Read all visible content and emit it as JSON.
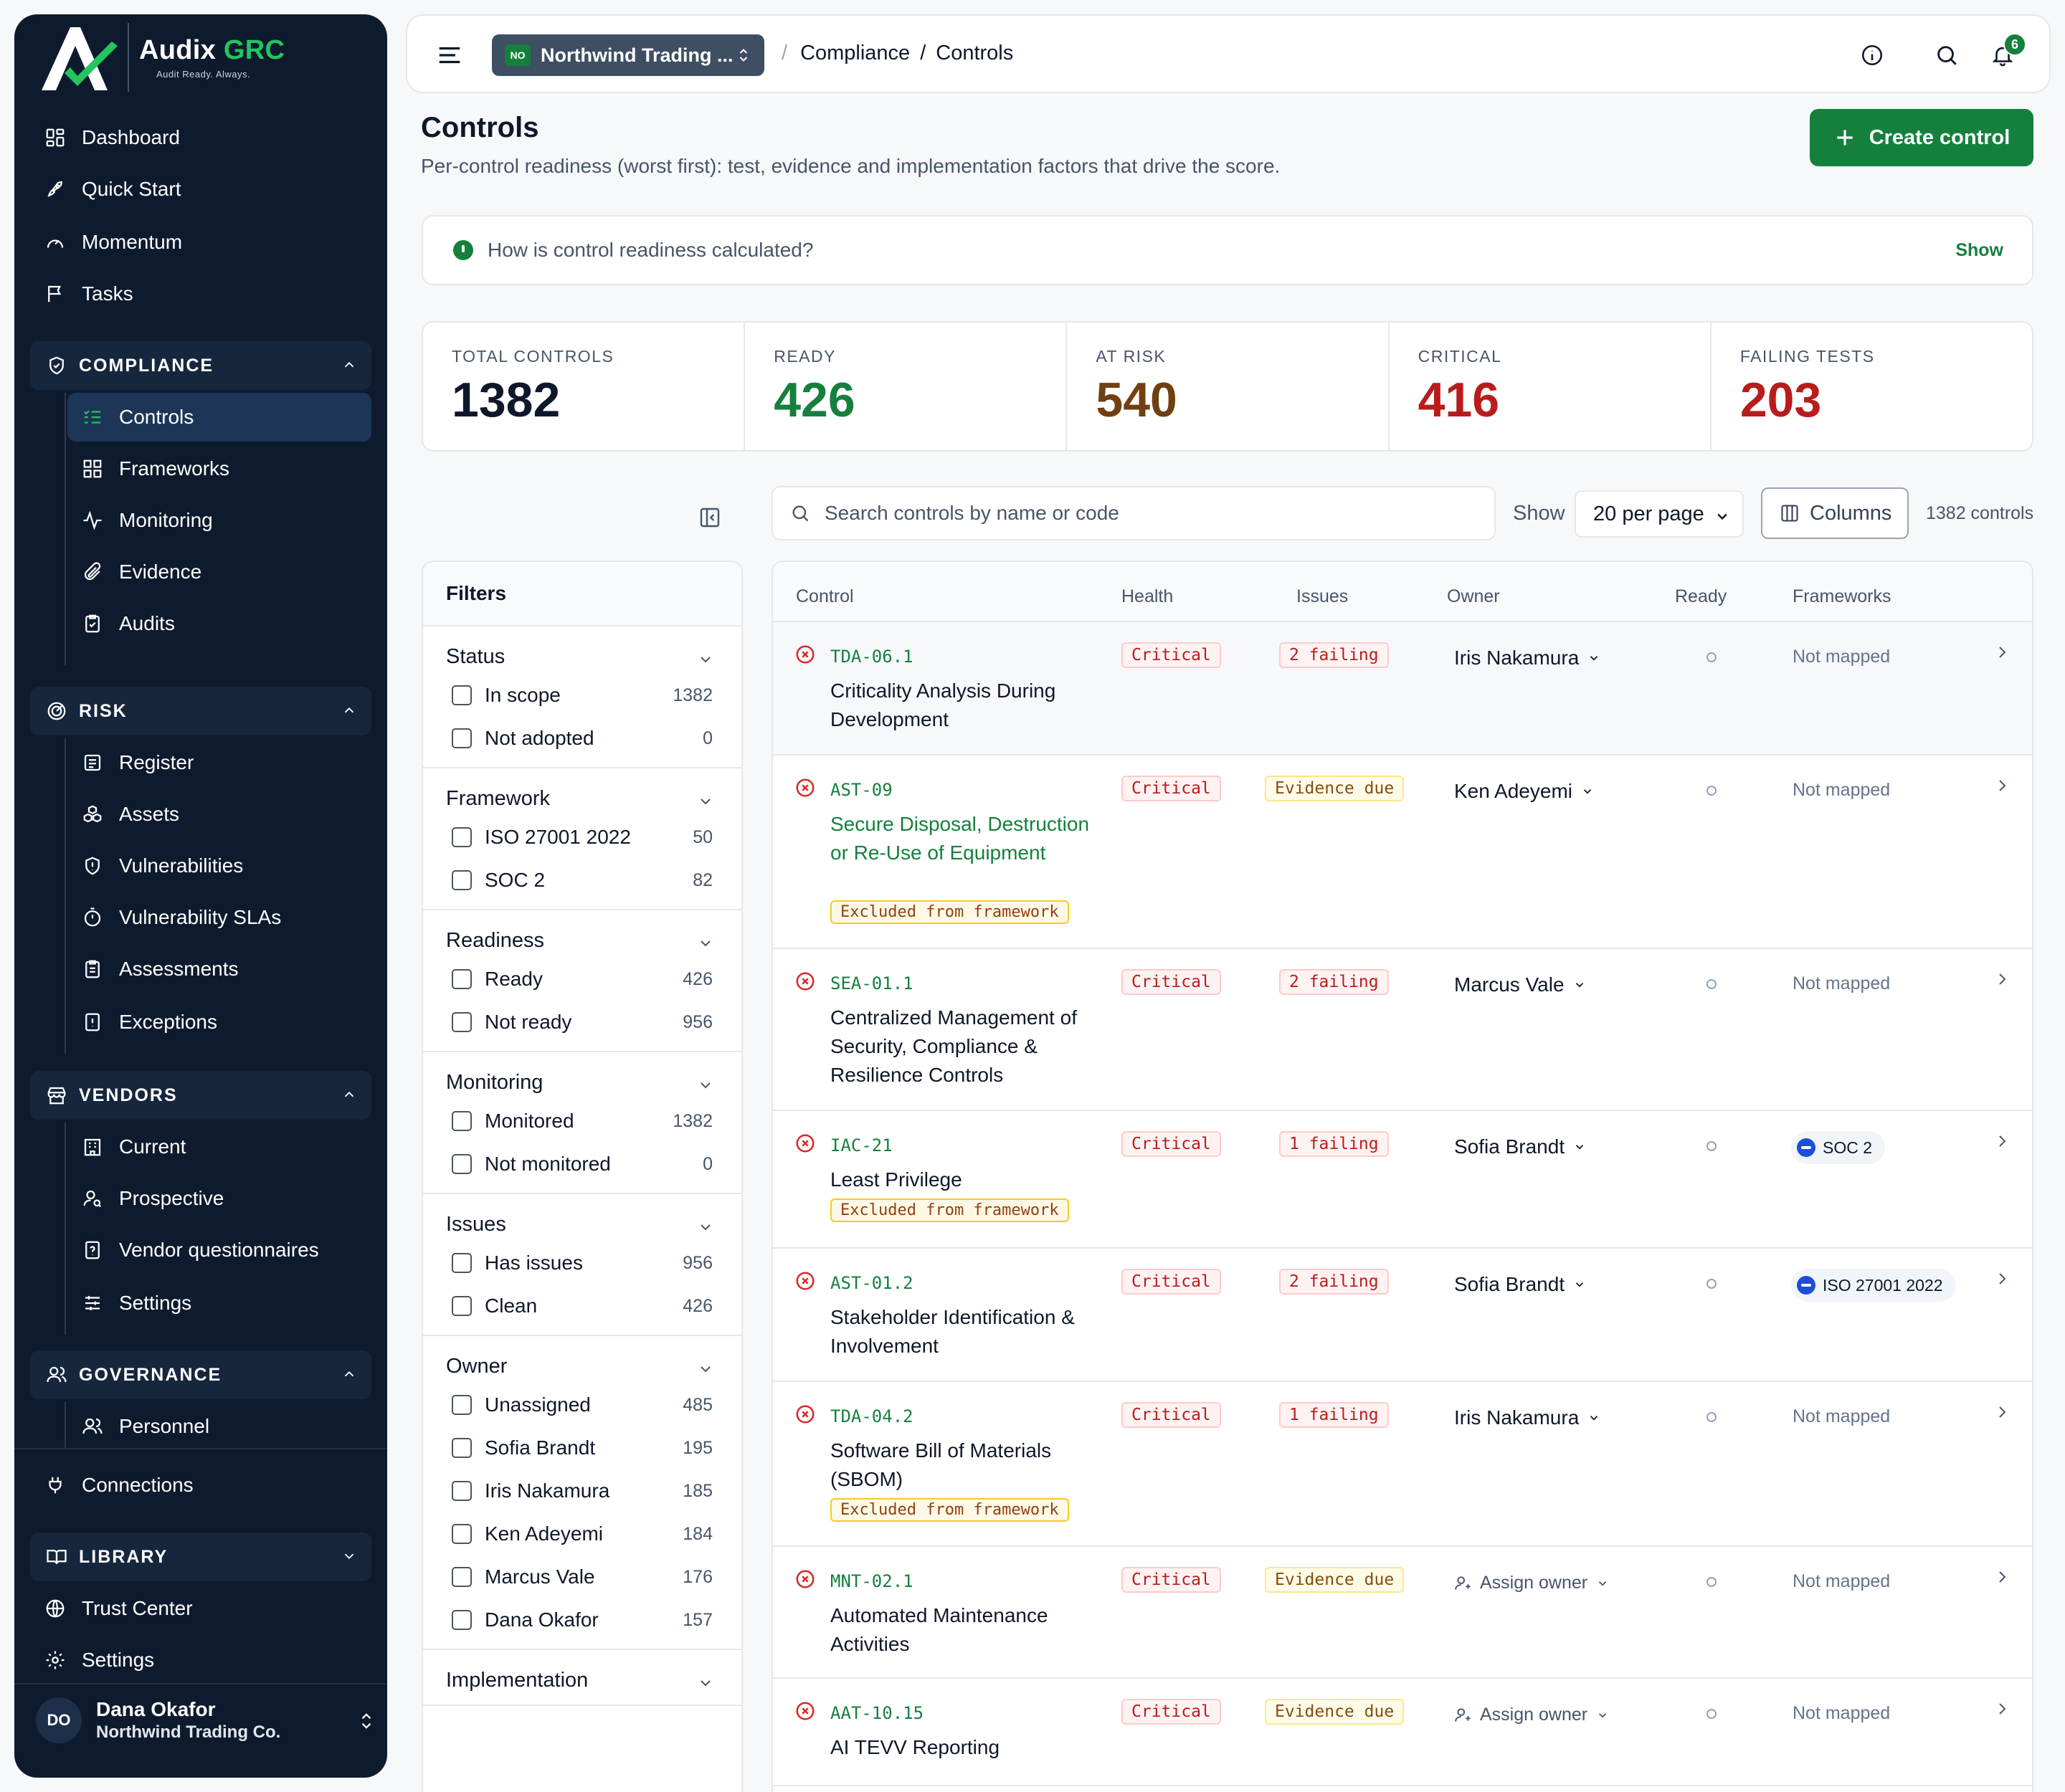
{
  "brand": {
    "name_part1": "Audix",
    "name_part2": "GRC",
    "tagline": "Audit Ready. Always."
  },
  "sidebar": {
    "top_items": [
      {
        "label": "Dashboard",
        "icon": "dashboard-icon"
      },
      {
        "label": "Quick Start",
        "icon": "rocket-icon"
      },
      {
        "label": "Momentum",
        "icon": "gauge-icon"
      },
      {
        "label": "Tasks",
        "icon": "flag-icon"
      }
    ],
    "compliance": {
      "label": "COMPLIANCE",
      "items": [
        "Controls",
        "Frameworks",
        "Monitoring",
        "Evidence",
        "Audits"
      ],
      "active": "Controls"
    },
    "risk": {
      "label": "RISK",
      "items": [
        "Register",
        "Assets",
        "Vulnerabilities",
        "Vulnerability SLAs",
        "Assessments",
        "Exceptions"
      ]
    },
    "vendors": {
      "label": "VENDORS",
      "items": [
        "Current",
        "Prospective",
        "Vendor questionnaires",
        "Settings"
      ]
    },
    "governance": {
      "label": "GOVERNANCE",
      "items": [
        "Personnel"
      ]
    },
    "connections": "Connections",
    "library": {
      "label": "LIBRARY"
    },
    "bottom_items": [
      "Trust Center",
      "Settings"
    ],
    "user": {
      "initials": "DO",
      "name": "Dana Okafor",
      "org": "Northwind Trading Co."
    }
  },
  "topbar": {
    "org_badge": "NO",
    "org_name": "Northwind Trading ...",
    "breadcrumb_sep": "/",
    "breadcrumb": [
      "Compliance",
      "Controls"
    ],
    "notifications": "6"
  },
  "page": {
    "title": "Controls",
    "subtitle": "Per-control readiness (worst first): test, evidence and implementation factors that drive the score.",
    "create_button": "Create control",
    "info_question": "How is control readiness calculated?",
    "info_show": "Show"
  },
  "stats": [
    {
      "label": "TOTAL CONTROLS",
      "value": "1382",
      "color": "#0f172a"
    },
    {
      "label": "READY",
      "value": "426",
      "color": "#15803d"
    },
    {
      "label": "AT RISK",
      "value": "540",
      "color": "#713f12"
    },
    {
      "label": "CRITICAL",
      "value": "416",
      "color": "#b91c1c"
    },
    {
      "label": "FAILING TESTS",
      "value": "203",
      "color": "#b91c1c"
    }
  ],
  "filters": {
    "title": "Filters",
    "groups": [
      {
        "title": "Status",
        "options": [
          {
            "label": "In scope",
            "count": "1382"
          },
          {
            "label": "Not adopted",
            "count": "0"
          }
        ]
      },
      {
        "title": "Framework",
        "options": [
          {
            "label": "ISO 27001 2022",
            "count": "50"
          },
          {
            "label": "SOC 2",
            "count": "82"
          }
        ]
      },
      {
        "title": "Readiness",
        "options": [
          {
            "label": "Ready",
            "count": "426"
          },
          {
            "label": "Not ready",
            "count": "956"
          }
        ]
      },
      {
        "title": "Monitoring",
        "options": [
          {
            "label": "Monitored",
            "count": "1382"
          },
          {
            "label": "Not monitored",
            "count": "0"
          }
        ]
      },
      {
        "title": "Issues",
        "options": [
          {
            "label": "Has issues",
            "count": "956"
          },
          {
            "label": "Clean",
            "count": "426"
          }
        ]
      },
      {
        "title": "Owner",
        "options": [
          {
            "label": "Unassigned",
            "count": "485"
          },
          {
            "label": "Sofia Brandt",
            "count": "195"
          },
          {
            "label": "Iris Nakamura",
            "count": "185"
          },
          {
            "label": "Ken Adeyemi",
            "count": "184"
          },
          {
            "label": "Marcus Vale",
            "count": "176"
          },
          {
            "label": "Dana Okafor",
            "count": "157"
          }
        ]
      },
      {
        "title": "Implementation",
        "options": []
      }
    ]
  },
  "toolbar": {
    "search_placeholder": "Search controls by name or code",
    "show_label": "Show",
    "per_page": "20 per page",
    "columns_label": "Columns",
    "count_label": "1382 controls"
  },
  "table": {
    "headers": [
      "Control",
      "Health",
      "Issues",
      "Owner",
      "Ready",
      "Frameworks"
    ],
    "rows": [
      {
        "code": "TDA-06.1",
        "name": "Criticality Analysis During Development",
        "health": "Critical",
        "issue": "2 failing",
        "issue_type": "fail",
        "owner": "Iris Nakamura",
        "framework": "Not mapped"
      },
      {
        "code": "AST-09",
        "name": "Secure Disposal, Destruction or Re-Use of Equipment",
        "excluded": "Excluded from framework",
        "health": "Critical",
        "issue": "Evidence due",
        "issue_type": "ev",
        "owner": "Ken Adeyemi",
        "framework": "Not mapped"
      },
      {
        "code": "SEA-01.1",
        "name": "Centralized Management of Security, Compliance & Resilience Controls",
        "health": "Critical",
        "issue": "2 failing",
        "issue_type": "fail",
        "owner": "Marcus Vale",
        "framework": "Not mapped"
      },
      {
        "code": "IAC-21",
        "name": "Least Privilege",
        "excluded": "Excluded from framework",
        "health": "Critical",
        "issue": "1 failing",
        "issue_type": "fail",
        "owner": "Sofia Brandt",
        "framework_badge": "SOC 2"
      },
      {
        "code": "AST-01.2",
        "name": "Stakeholder Identification & Involvement",
        "health": "Critical",
        "issue": "2 failing",
        "issue_type": "fail",
        "owner": "Sofia Brandt",
        "framework_badge": "ISO 27001 2022"
      },
      {
        "code": "TDA-04.2",
        "name": "Software Bill of Materials (SBOM)",
        "excluded": "Excluded from framework",
        "health": "Critical",
        "issue": "1 failing",
        "issue_type": "fail",
        "owner": "Iris Nakamura",
        "framework": "Not mapped"
      },
      {
        "code": "MNT-02.1",
        "name": "Automated Maintenance Activities",
        "health": "Critical",
        "issue": "Evidence due",
        "issue_type": "ev",
        "assign": "Assign owner",
        "framework": "Not mapped"
      },
      {
        "code": "AAT-10.15",
        "name": "AI TEVV Reporting",
        "health": "Critical",
        "issue": "Evidence due",
        "issue_type": "ev",
        "assign": "Assign owner",
        "framework": "Not mapped"
      }
    ]
  }
}
